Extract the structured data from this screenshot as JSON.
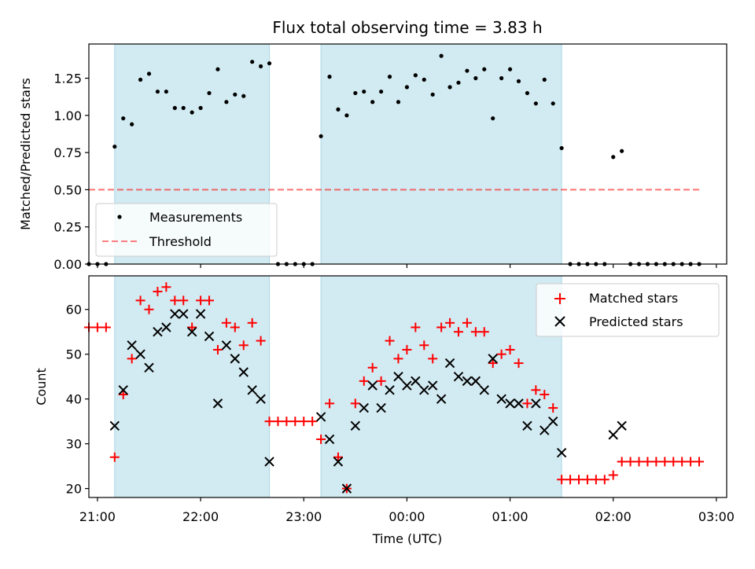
{
  "title": "Flux total observing time = 3.83 h",
  "xlabel": "Time (UTC)",
  "x_ticks": [
    "21:00",
    "22:00",
    "23:00",
    "00:00",
    "01:00",
    "02:00",
    "03:00"
  ],
  "colors": {
    "shade": "#add8e6",
    "threshold": "#ff0000",
    "matched": "#ff0000",
    "predicted": "#000000",
    "measure": "#000000"
  },
  "chart_data": [
    {
      "type": "scatter",
      "ylabel": "Matched/Predicted stars",
      "y_ticks": [
        "0.00",
        "0.25",
        "0.50",
        "0.75",
        "1.00",
        "1.25"
      ],
      "xlim": [
        "20:55",
        "03:06"
      ],
      "ylim": [
        0,
        1.48
      ],
      "shaded_intervals": [
        [
          "21:10",
          "22:40"
        ],
        [
          "23:10",
          "01:30"
        ]
      ],
      "threshold": {
        "y": 0.5,
        "x": [
          "20:55",
          "02:51"
        ]
      },
      "legend": [
        "Measurements",
        "Threshold"
      ],
      "legend_position": "lower-left",
      "measurements": [
        [
          "20:55",
          0.0
        ],
        [
          "21:00",
          0.0
        ],
        [
          "21:05",
          0.0
        ],
        [
          "21:10",
          0.79
        ],
        [
          "21:15",
          0.98
        ],
        [
          "21:20",
          0.94
        ],
        [
          "21:25",
          1.24
        ],
        [
          "21:30",
          1.28
        ],
        [
          "21:35",
          1.16
        ],
        [
          "21:40",
          1.16
        ],
        [
          "21:45",
          1.05
        ],
        [
          "21:50",
          1.05
        ],
        [
          "21:55",
          1.02
        ],
        [
          "22:00",
          1.05
        ],
        [
          "22:05",
          1.15
        ],
        [
          "22:10",
          1.31
        ],
        [
          "22:15",
          1.09
        ],
        [
          "22:20",
          1.14
        ],
        [
          "22:25",
          1.13
        ],
        [
          "22:30",
          1.36
        ],
        [
          "22:35",
          1.33
        ],
        [
          "22:40",
          1.35
        ],
        [
          "22:45",
          0.0
        ],
        [
          "22:50",
          0.0
        ],
        [
          "22:55",
          0.0
        ],
        [
          "23:00",
          0.0
        ],
        [
          "23:05",
          0.0
        ],
        [
          "23:10",
          0.86
        ],
        [
          "23:15",
          1.26
        ],
        [
          "23:20",
          1.04
        ],
        [
          "23:25",
          1.0
        ],
        [
          "23:30",
          1.15
        ],
        [
          "23:35",
          1.16
        ],
        [
          "23:40",
          1.09
        ],
        [
          "23:45",
          1.16
        ],
        [
          "23:50",
          1.26
        ],
        [
          "23:55",
          1.09
        ],
        [
          "00:00",
          1.19
        ],
        [
          "00:05",
          1.27
        ],
        [
          "00:10",
          1.24
        ],
        [
          "00:15",
          1.14
        ],
        [
          "00:20",
          1.4
        ],
        [
          "00:25",
          1.19
        ],
        [
          "00:30",
          1.22
        ],
        [
          "00:35",
          1.3
        ],
        [
          "00:40",
          1.25
        ],
        [
          "00:45",
          1.31
        ],
        [
          "00:50",
          0.98
        ],
        [
          "00:55",
          1.25
        ],
        [
          "01:00",
          1.31
        ],
        [
          "01:05",
          1.23
        ],
        [
          "01:10",
          1.15
        ],
        [
          "01:15",
          1.08
        ],
        [
          "01:20",
          1.24
        ],
        [
          "01:25",
          1.08
        ],
        [
          "01:30",
          0.78
        ],
        [
          "01:35",
          0.0
        ],
        [
          "01:40",
          0.0
        ],
        [
          "01:45",
          0.0
        ],
        [
          "01:50",
          0.0
        ],
        [
          "01:55",
          0.0
        ],
        [
          "02:00",
          0.72
        ],
        [
          "02:05",
          0.76
        ],
        [
          "02:10",
          0.0
        ],
        [
          "02:15",
          0.0
        ],
        [
          "02:20",
          0.0
        ],
        [
          "02:25",
          0.0
        ],
        [
          "02:30",
          0.0
        ],
        [
          "02:35",
          0.0
        ],
        [
          "02:40",
          0.0
        ],
        [
          "02:45",
          0.0
        ],
        [
          "02:50",
          0.0
        ]
      ]
    },
    {
      "type": "scatter",
      "ylabel": "Count",
      "y_ticks": [
        "20",
        "30",
        "40",
        "50",
        "60"
      ],
      "xlim": [
        "20:55",
        "03:06"
      ],
      "ylim": [
        18,
        67.5
      ],
      "shaded_intervals": [
        [
          "21:10",
          "22:40"
        ],
        [
          "23:10",
          "01:30"
        ]
      ],
      "legend": [
        "Matched stars",
        "Predicted stars"
      ],
      "legend_position": "upper-right",
      "matched_stars": [
        [
          "20:55",
          56
        ],
        [
          "21:00",
          56
        ],
        [
          "21:05",
          56
        ],
        [
          "21:10",
          27
        ],
        [
          "21:15",
          41
        ],
        [
          "21:20",
          49
        ],
        [
          "21:25",
          62
        ],
        [
          "21:30",
          60
        ],
        [
          "21:35",
          64
        ],
        [
          "21:40",
          65
        ],
        [
          "21:45",
          62
        ],
        [
          "21:50",
          62
        ],
        [
          "21:55",
          56
        ],
        [
          "22:00",
          62
        ],
        [
          "22:05",
          62
        ],
        [
          "22:10",
          51
        ],
        [
          "22:15",
          57
        ],
        [
          "22:20",
          56
        ],
        [
          "22:25",
          52
        ],
        [
          "22:30",
          57
        ],
        [
          "22:35",
          53
        ],
        [
          "22:40",
          35
        ],
        [
          "22:45",
          35
        ],
        [
          "22:50",
          35
        ],
        [
          "22:55",
          35
        ],
        [
          "23:00",
          35
        ],
        [
          "23:05",
          35
        ],
        [
          "23:10",
          31
        ],
        [
          "23:15",
          39
        ],
        [
          "23:20",
          27
        ],
        [
          "23:25",
          20
        ],
        [
          "23:30",
          39
        ],
        [
          "23:35",
          44
        ],
        [
          "23:40",
          47
        ],
        [
          "23:45",
          44
        ],
        [
          "23:50",
          53
        ],
        [
          "23:55",
          49
        ],
        [
          "00:00",
          51
        ],
        [
          "00:05",
          56
        ],
        [
          "00:10",
          52
        ],
        [
          "00:15",
          49
        ],
        [
          "00:20",
          56
        ],
        [
          "00:25",
          57
        ],
        [
          "00:30",
          55
        ],
        [
          "00:35",
          57
        ],
        [
          "00:40",
          55
        ],
        [
          "00:45",
          55
        ],
        [
          "00:50",
          48
        ],
        [
          "00:55",
          50
        ],
        [
          "01:00",
          51
        ],
        [
          "01:05",
          48
        ],
        [
          "01:10",
          39
        ],
        [
          "01:15",
          42
        ],
        [
          "01:20",
          41
        ],
        [
          "01:25",
          38
        ],
        [
          "01:30",
          22
        ],
        [
          "01:35",
          22
        ],
        [
          "01:40",
          22
        ],
        [
          "01:45",
          22
        ],
        [
          "01:50",
          22
        ],
        [
          "01:55",
          22
        ],
        [
          "02:00",
          23
        ],
        [
          "02:05",
          26
        ],
        [
          "02:10",
          26
        ],
        [
          "02:15",
          26
        ],
        [
          "02:20",
          26
        ],
        [
          "02:25",
          26
        ],
        [
          "02:30",
          26
        ],
        [
          "02:35",
          26
        ],
        [
          "02:40",
          26
        ],
        [
          "02:45",
          26
        ],
        [
          "02:50",
          26
        ]
      ],
      "predicted_stars": [
        [
          "21:10",
          34
        ],
        [
          "21:15",
          42
        ],
        [
          "21:20",
          52
        ],
        [
          "21:25",
          50
        ],
        [
          "21:30",
          47
        ],
        [
          "21:35",
          55
        ],
        [
          "21:40",
          56
        ],
        [
          "21:45",
          59
        ],
        [
          "21:50",
          59
        ],
        [
          "21:55",
          55
        ],
        [
          "22:00",
          59
        ],
        [
          "22:05",
          54
        ],
        [
          "22:10",
          39
        ],
        [
          "22:15",
          52
        ],
        [
          "22:20",
          49
        ],
        [
          "22:25",
          46
        ],
        [
          "22:30",
          42
        ],
        [
          "22:35",
          40
        ],
        [
          "22:40",
          26
        ],
        [
          "23:10",
          36
        ],
        [
          "23:15",
          31
        ],
        [
          "23:20",
          26
        ],
        [
          "23:25",
          20
        ],
        [
          "23:30",
          34
        ],
        [
          "23:35",
          38
        ],
        [
          "23:40",
          43
        ],
        [
          "23:45",
          38
        ],
        [
          "23:50",
          42
        ],
        [
          "23:55",
          45
        ],
        [
          "00:00",
          43
        ],
        [
          "00:05",
          44
        ],
        [
          "00:10",
          42
        ],
        [
          "00:15",
          43
        ],
        [
          "00:20",
          40
        ],
        [
          "00:25",
          48
        ],
        [
          "00:30",
          45
        ],
        [
          "00:35",
          44
        ],
        [
          "00:40",
          44
        ],
        [
          "00:45",
          42
        ],
        [
          "00:50",
          49
        ],
        [
          "00:55",
          40
        ],
        [
          "01:00",
          39
        ],
        [
          "01:05",
          39
        ],
        [
          "01:10",
          34
        ],
        [
          "01:15",
          39
        ],
        [
          "01:20",
          33
        ],
        [
          "01:25",
          35
        ],
        [
          "01:30",
          28
        ],
        [
          "02:00",
          32
        ],
        [
          "02:05",
          34
        ]
      ]
    }
  ]
}
